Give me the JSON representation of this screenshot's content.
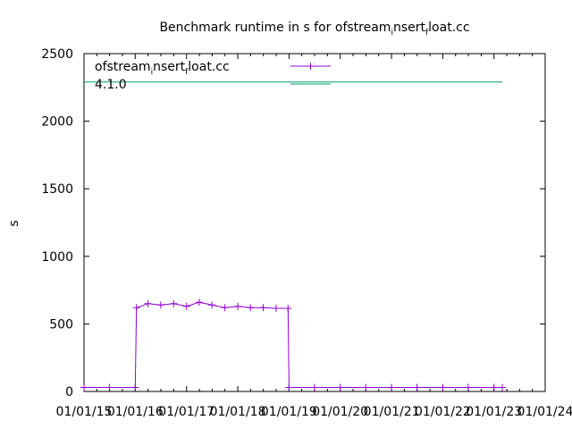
{
  "chart_data": {
    "type": "line",
    "title_parts": [
      "Benchmark runtime in s for ofstream",
      "i",
      "nsert",
      "f",
      "loat.cc"
    ],
    "ylabel": "s",
    "xlabel": "",
    "ylim": [
      0,
      2500
    ],
    "xlim": [
      "2015-01-01",
      "2024-01-01"
    ],
    "yticks": [
      0,
      500,
      1000,
      1500,
      2000,
      2500
    ],
    "xticks": [
      "2015-01-01",
      "2016-01-01",
      "2017-01-01",
      "2018-01-01",
      "2019-01-01",
      "2020-01-01",
      "2021-01-01",
      "2022-01-01",
      "2023-01-01",
      "2024-01-01"
    ],
    "xtick_labels": [
      "01/01/15",
      "01/01/16",
      "01/01/17",
      "01/01/18",
      "01/01/19",
      "01/01/20",
      "01/01/21",
      "01/01/22",
      "01/01/23",
      "01/01/24"
    ],
    "grid": false,
    "legend_position": "top-left",
    "series": [
      {
        "name_parts": [
          "ofstream",
          "i",
          "nsert",
          "f",
          "loat.cc"
        ],
        "color": "#9400d3",
        "marker": "+",
        "x": [
          "2015-01-01",
          "2015-07-01",
          "2016-01-01",
          "2016-01-10",
          "2016-04-01",
          "2016-07-01",
          "2016-10-01",
          "2017-01-01",
          "2017-04-01",
          "2017-07-01",
          "2017-10-01",
          "2018-01-01",
          "2018-04-01",
          "2018-07-01",
          "2018-10-01",
          "2018-12-25",
          "2019-01-01",
          "2019-07-01",
          "2020-01-01",
          "2020-07-01",
          "2021-01-01",
          "2021-07-01",
          "2022-01-01",
          "2022-07-01",
          "2023-01-01",
          "2023-03-01"
        ],
        "values": [
          30,
          30,
          30,
          620,
          650,
          640,
          650,
          630,
          660,
          640,
          620,
          630,
          620,
          620,
          615,
          615,
          30,
          30,
          30,
          30,
          30,
          30,
          30,
          30,
          30,
          30
        ]
      },
      {
        "name": "4.1.0",
        "color": "#009e73",
        "marker": "none",
        "x": [
          "2015-01-01",
          "2023-03-01"
        ],
        "values": [
          2290,
          2290
        ]
      }
    ]
  }
}
